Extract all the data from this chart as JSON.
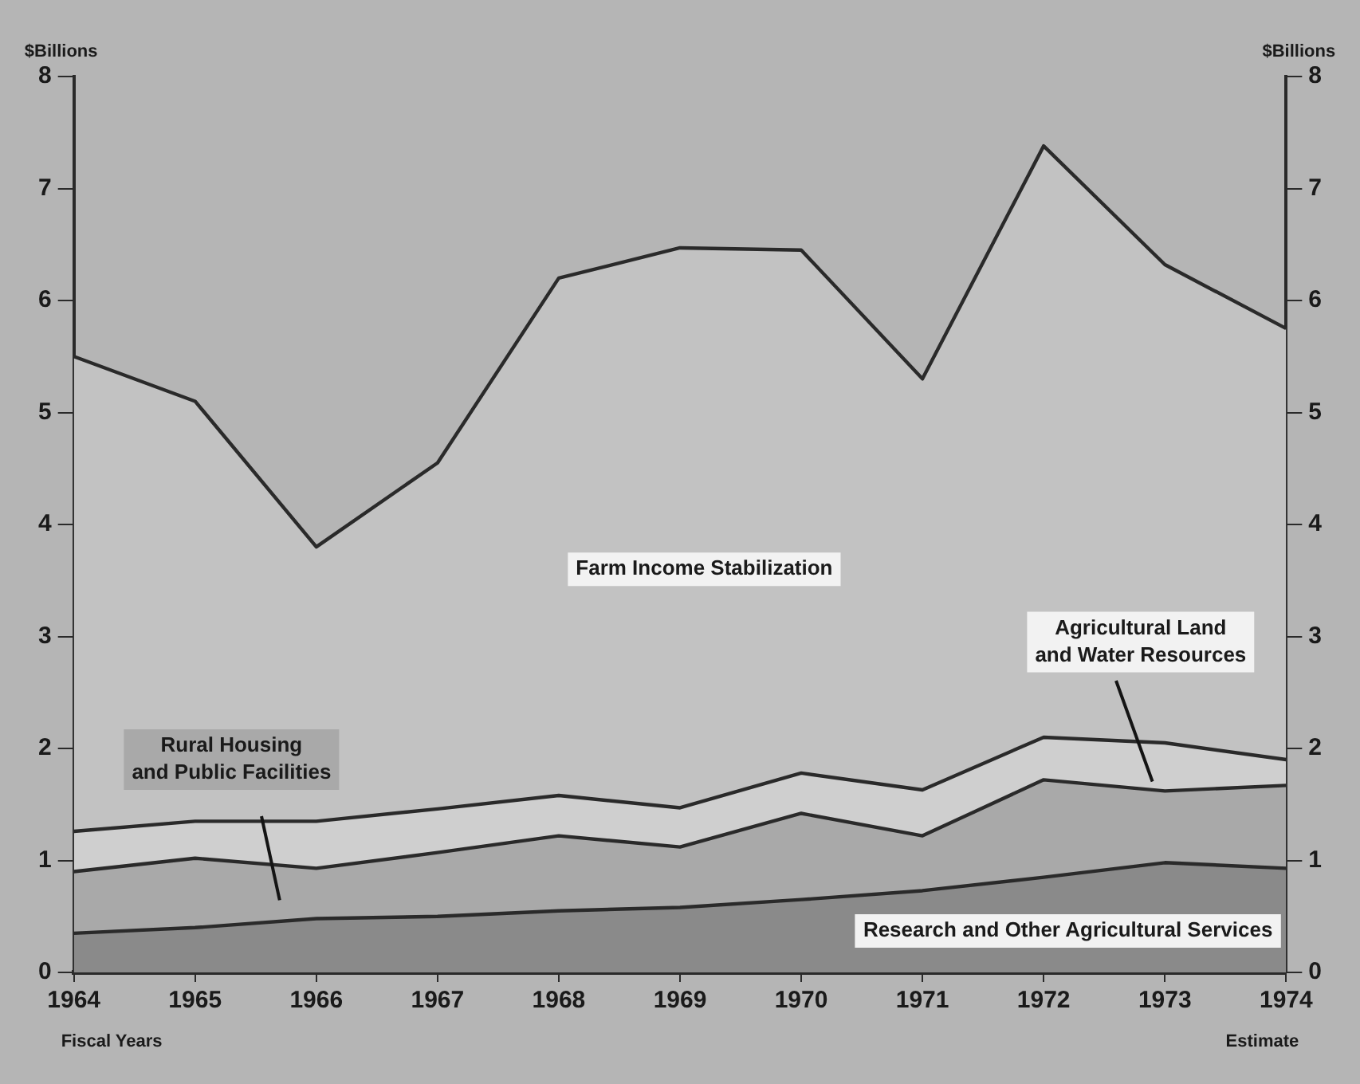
{
  "chart_data": {
    "type": "area",
    "stacked": true,
    "ylabel": "$Billions",
    "y2label": "$Billions",
    "categories": [
      "1964",
      "1965",
      "1966",
      "1967",
      "1968",
      "1969",
      "1970",
      "1971",
      "1972",
      "1973",
      "1974"
    ],
    "series": [
      {
        "name": "Research and Other Agricultural Services",
        "color": "#8a8a8a",
        "values": [
          0.35,
          0.4,
          0.48,
          0.5,
          0.55,
          0.58,
          0.65,
          0.73,
          0.85,
          0.98,
          0.93
        ]
      },
      {
        "name": "Rural Housing and Public Facilities",
        "color": "#a9a9a9",
        "values": [
          0.55,
          0.62,
          0.45,
          0.57,
          0.67,
          0.54,
          0.77,
          0.49,
          0.87,
          0.64,
          0.74
        ]
      },
      {
        "name": "Agricultural Land and Water Resources",
        "color": "#cfcfcf",
        "values": [
          0.36,
          0.33,
          0.42,
          0.39,
          0.36,
          0.35,
          0.36,
          0.41,
          0.38,
          0.43,
          0.23
        ]
      },
      {
        "name": "Farm Income Stabilization",
        "color": "#c2c2c2",
        "values": [
          4.24,
          3.75,
          2.45,
          3.09,
          4.62,
          5.0,
          4.67,
          3.67,
          5.28,
          4.27,
          3.85
        ]
      }
    ],
    "ylim": [
      0,
      8
    ],
    "yticks": [
      0,
      1,
      2,
      3,
      4,
      5,
      6,
      7,
      8
    ],
    "y2lim": [
      0,
      8
    ],
    "y2ticks": [
      0,
      1,
      2,
      3,
      4,
      5,
      6,
      7,
      8
    ],
    "annotations": [
      "Fiscal Years",
      "Estimate"
    ],
    "grid": false,
    "legend": false,
    "marker": "none",
    "line_style": "solid"
  }
}
